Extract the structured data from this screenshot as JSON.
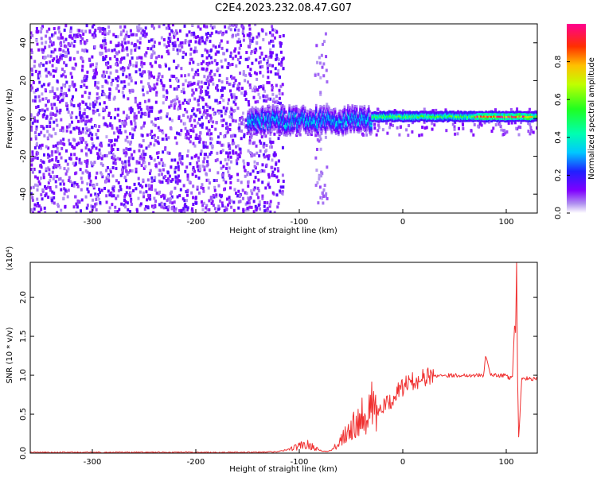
{
  "figure": {
    "title": "C2E4.2023.232.08.47.G07"
  },
  "chart_data": [
    {
      "type": "heatmap",
      "title": "C2E4.2023.232.08.47.G07",
      "xlabel": "Height of straight line (km)",
      "ylabel": "Frequency (Hz)",
      "xlim": [
        -360,
        130
      ],
      "ylim": [
        -50,
        50
      ],
      "x_ticks": [
        -300,
        -200,
        -100,
        0,
        100
      ],
      "x_tick_labels": [
        "-300",
        "-200",
        "-100",
        "0",
        "100"
      ],
      "y_ticks": [
        -40,
        -20,
        0,
        20,
        40
      ],
      "y_tick_labels": [
        "-40",
        "-20",
        "0",
        "20",
        "40"
      ],
      "colorbar": {
        "label": "Normalized spectral amplitude",
        "range": [
          0,
          1
        ],
        "ticks": [
          0.0,
          0.2,
          0.4,
          0.6,
          0.8
        ],
        "tick_labels": [
          "0.0",
          "0.2",
          "0.4",
          "0.6",
          "0.8"
        ],
        "colormap": "rainbow"
      },
      "regions": [
        {
          "x_range": [
            -360,
            -115
          ],
          "freq_range": [
            -50,
            50
          ],
          "amplitude": 0.05,
          "description": "broadband noise"
        },
        {
          "x_range": [
            -150,
            -30
          ],
          "center_freq": -1,
          "freq_halfwidth": 5,
          "amplitude": 0.35
        },
        {
          "x_range": [
            -30,
            130
          ],
          "center_freq": 1,
          "freq_halfwidth": 2,
          "amplitude": 0.55
        },
        {
          "x_range": [
            70,
            125
          ],
          "center_freq": 1,
          "freq_halfwidth": 1,
          "amplitude": 0.9
        }
      ]
    },
    {
      "type": "line",
      "xlabel": "Height of straight line (km)",
      "ylabel": "SNR (10 * v/v)",
      "y_multiplier": "(x10⁴)",
      "xlim": [
        -360,
        130
      ],
      "ylim": [
        0,
        2.45
      ],
      "x_ticks": [
        -300,
        -200,
        -100,
        0,
        100
      ],
      "x_tick_labels": [
        "-300",
        "-200",
        "-100",
        "0",
        "100"
      ],
      "y_ticks": [
        0.0,
        0.5,
        1.0,
        1.5,
        2.0
      ],
      "y_tick_labels": [
        "0.0",
        "0.5",
        "1.0",
        "1.5",
        "2.0"
      ],
      "color": "#f03030",
      "series": [
        {
          "x": [
            -360,
            -340,
            -320,
            -300,
            -280,
            -260,
            -240,
            -220,
            -200,
            -180,
            -160,
            -140,
            -120,
            -110,
            -100,
            -95,
            -90,
            -85,
            -80,
            -75,
            -70,
            -65,
            -60,
            -55,
            -50,
            -45,
            -40,
            -35,
            -30,
            -25,
            -20,
            -15,
            -10,
            -5,
            0,
            5,
            10,
            15,
            20,
            25,
            30,
            35,
            40,
            50,
            60,
            70,
            75,
            78,
            80,
            85,
            90,
            95,
            100,
            103,
            106,
            108,
            109,
            110,
            111,
            112,
            115,
            120,
            125,
            130
          ],
          "y": [
            0.01,
            0.01,
            0.01,
            0.01,
            0.01,
            0.01,
            0.01,
            0.01,
            0.01,
            0.01,
            0.01,
            0.01,
            0.02,
            0.05,
            0.09,
            0.12,
            0.1,
            0.07,
            0.04,
            0.02,
            0.03,
            0.08,
            0.18,
            0.28,
            0.35,
            0.42,
            0.48,
            0.55,
            0.6,
            0.52,
            0.58,
            0.62,
            0.7,
            0.78,
            0.85,
            0.9,
            0.92,
            0.95,
            0.97,
            0.98,
            0.99,
            1.0,
            1.0,
            1.0,
            1.0,
            1.0,
            1.0,
            1.0,
            1.25,
            1.0,
            1.0,
            1.0,
            1.0,
            0.95,
            1.0,
            1.65,
            1.55,
            2.45,
            0.9,
            0.2,
            0.95,
            0.96,
            0.95,
            0.95
          ]
        }
      ]
    }
  ]
}
